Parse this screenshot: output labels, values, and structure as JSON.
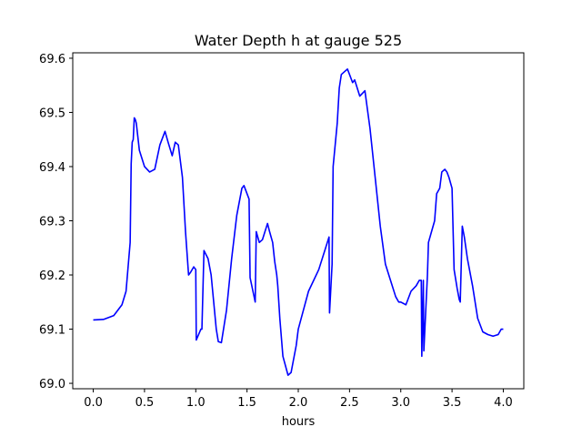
{
  "chart_data": {
    "type": "line",
    "title": "Water Depth h at gauge 525",
    "xlabel": "hours",
    "ylabel": "",
    "xlim": [
      -0.2,
      4.2
    ],
    "ylim": [
      68.99,
      69.61
    ],
    "xticks": [
      0.0,
      0.5,
      1.0,
      1.5,
      2.0,
      2.5,
      3.0,
      3.5,
      4.0
    ],
    "xtick_labels": [
      "0.0",
      "0.5",
      "1.0",
      "1.5",
      "2.0",
      "2.5",
      "3.0",
      "3.5",
      "4.0"
    ],
    "yticks": [
      69.0,
      69.1,
      69.2,
      69.3,
      69.4,
      69.5,
      69.6
    ],
    "ytick_labels": [
      "69.0",
      "69.1",
      "69.2",
      "69.3",
      "69.4",
      "69.5",
      "69.6"
    ],
    "grid": false,
    "series": [
      {
        "color": "#0000ff",
        "x": [
          0.0,
          0.1,
          0.2,
          0.28,
          0.32,
          0.36,
          0.37,
          0.38,
          0.39,
          0.4,
          0.41,
          0.42,
          0.45,
          0.5,
          0.55,
          0.6,
          0.65,
          0.7,
          0.73,
          0.77,
          0.8,
          0.83,
          0.87,
          0.9,
          0.93,
          0.95,
          0.98,
          1.0,
          1.005,
          1.05,
          1.06,
          1.08,
          1.12,
          1.15,
          1.2,
          1.22,
          1.25,
          1.3,
          1.35,
          1.4,
          1.45,
          1.47,
          1.52,
          1.53,
          1.58,
          1.59,
          1.62,
          1.65,
          1.7,
          1.72,
          1.75,
          1.77,
          1.79,
          1.8,
          1.82,
          1.85,
          1.9,
          1.93,
          1.95,
          1.98,
          2.0,
          2.05,
          2.1,
          2.15,
          2.2,
          2.25,
          2.3,
          2.305,
          2.33,
          2.34,
          2.38,
          2.4,
          2.42,
          2.45,
          2.48,
          2.5,
          2.53,
          2.55,
          2.6,
          2.65,
          2.7,
          2.75,
          2.8,
          2.85,
          2.9,
          2.95,
          2.98,
          3.0,
          3.05,
          3.1,
          3.15,
          3.18,
          3.2,
          3.205,
          3.22,
          3.225,
          3.26,
          3.27,
          3.3,
          3.33,
          3.35,
          3.38,
          3.4,
          3.43,
          3.45,
          3.47,
          3.5,
          3.52,
          3.55,
          3.57,
          3.58,
          3.6,
          3.62,
          3.65,
          3.7,
          3.75,
          3.8,
          3.85,
          3.9,
          3.95,
          3.98,
          4.0
        ],
        "y": [
          69.117,
          69.118,
          69.125,
          69.145,
          69.17,
          69.26,
          69.405,
          69.445,
          69.45,
          69.49,
          69.487,
          69.48,
          69.43,
          69.4,
          69.39,
          69.395,
          69.44,
          69.465,
          69.445,
          69.42,
          69.445,
          69.44,
          69.38,
          69.28,
          69.2,
          69.205,
          69.215,
          69.21,
          69.08,
          69.1,
          69.1,
          69.245,
          69.23,
          69.2,
          69.1,
          69.077,
          69.075,
          69.135,
          69.23,
          69.31,
          69.36,
          69.365,
          69.34,
          69.195,
          69.15,
          69.28,
          69.26,
          69.265,
          69.295,
          69.28,
          69.26,
          69.225,
          69.2,
          69.18,
          69.12,
          69.05,
          69.015,
          69.02,
          69.04,
          69.07,
          69.1,
          69.135,
          69.17,
          69.19,
          69.21,
          69.24,
          69.27,
          69.13,
          69.22,
          69.4,
          69.48,
          69.545,
          69.57,
          69.575,
          69.58,
          69.57,
          69.555,
          69.56,
          69.53,
          69.54,
          69.47,
          69.38,
          69.29,
          69.22,
          69.19,
          69.16,
          69.15,
          69.15,
          69.145,
          69.17,
          69.18,
          69.19,
          69.19,
          69.05,
          69.19,
          69.06,
          69.2,
          69.26,
          69.28,
          69.3,
          69.35,
          69.36,
          69.39,
          69.395,
          69.39,
          69.38,
          69.36,
          69.21,
          69.175,
          69.155,
          69.15,
          69.29,
          69.27,
          69.23,
          69.18,
          69.12,
          69.095,
          69.09,
          69.087,
          69.09,
          69.1,
          69.1
        ]
      }
    ]
  }
}
